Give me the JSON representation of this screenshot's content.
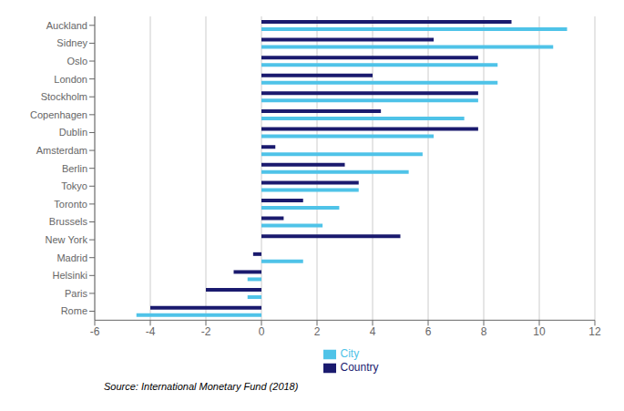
{
  "chart_data": {
    "type": "bar",
    "orientation": "horizontal",
    "categories": [
      "Auckland",
      "Sidney",
      "Oslo",
      "London",
      "Stockholm",
      "Copenhagen",
      "Dublin",
      "Amsterdam",
      "Berlin",
      "Tokyo",
      "Toronto",
      "Brussels",
      "New York",
      "Madrid",
      "Helsinki",
      "Paris",
      "Rome"
    ],
    "series": [
      {
        "name": "Country",
        "color": "#1a1a6e",
        "values": [
          9.0,
          6.2,
          7.8,
          4.0,
          7.8,
          4.3,
          7.8,
          0.5,
          3.0,
          3.5,
          1.5,
          0.8,
          5.0,
          -0.3,
          -1.0,
          -2.0,
          -4.0
        ]
      },
      {
        "name": "City",
        "color": "#4fc3e8",
        "values": [
          11.0,
          10.5,
          8.5,
          8.5,
          7.8,
          7.3,
          6.2,
          5.8,
          5.3,
          3.5,
          2.8,
          2.2,
          0.0,
          1.5,
          -0.5,
          -0.5,
          -4.5
        ]
      }
    ],
    "xlim": [
      -6,
      12
    ],
    "xticks": [
      -6,
      -4,
      -2,
      0,
      2,
      4,
      6,
      8,
      10,
      12
    ],
    "grid": true,
    "legend": "bottom",
    "annotation": "Source: International Monetary Fund (2018)"
  }
}
